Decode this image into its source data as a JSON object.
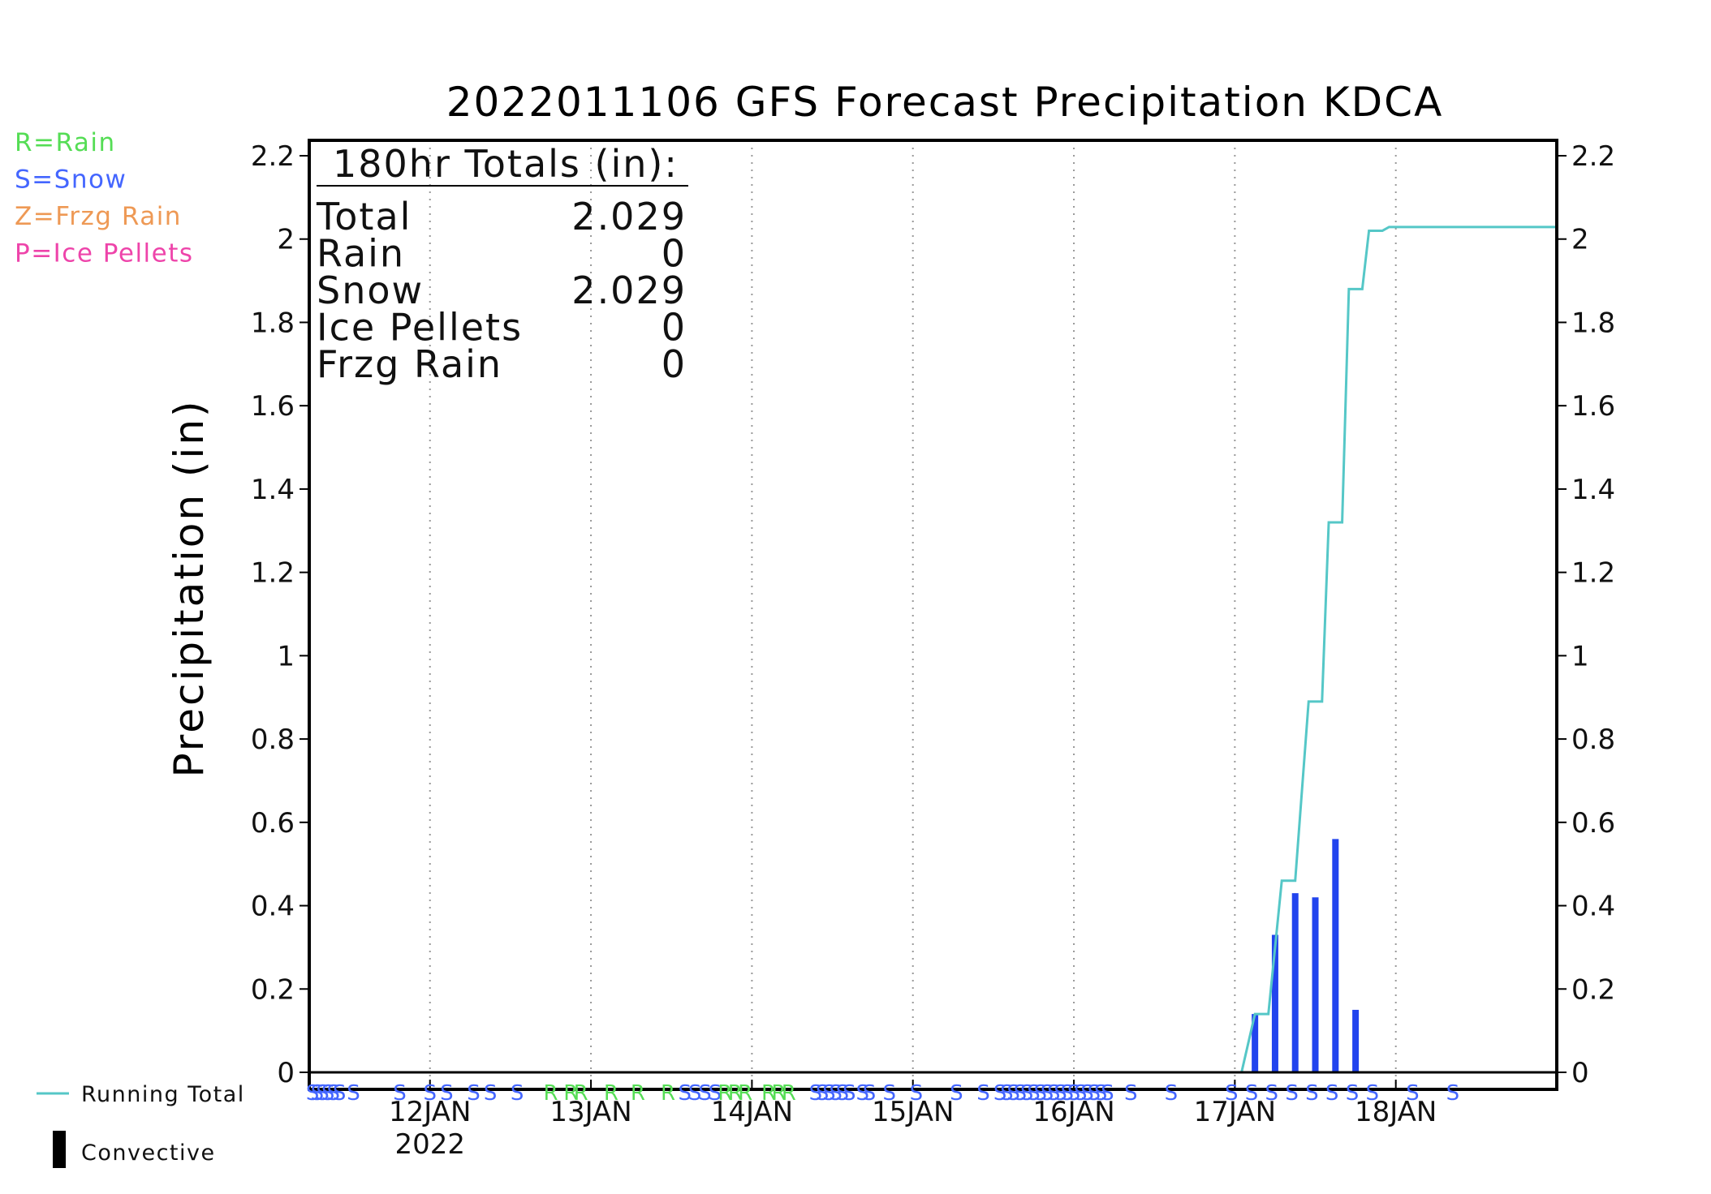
{
  "chart_data": {
    "type": "bar",
    "title": "2022011106 GFS Forecast Precipitation KDCA",
    "ylabel": "Precipitation (in)",
    "xlabel": "",
    "xlim_hours": [
      0,
      186
    ],
    "ylim": [
      0,
      2.2
    ],
    "y_ticks": [
      {
        "v": 0,
        "label": "0"
      },
      {
        "v": 0.2,
        "label": "0.2"
      },
      {
        "v": 0.4,
        "label": "0.4"
      },
      {
        "v": 0.6,
        "label": "0.6"
      },
      {
        "v": 0.8,
        "label": "0.8"
      },
      {
        "v": 1,
        "label": "1"
      },
      {
        "v": 1.2,
        "label": "1.2"
      },
      {
        "v": 1.4,
        "label": "1.4"
      },
      {
        "v": 1.6,
        "label": "1.6"
      },
      {
        "v": 1.8,
        "label": "1.8"
      },
      {
        "v": 2,
        "label": "2"
      },
      {
        "v": 2.2,
        "label": "2.2"
      }
    ],
    "x_ticks": [
      {
        "h": 18,
        "label": "12JAN",
        "sub": "2022"
      },
      {
        "h": 42,
        "label": "13JAN",
        "sub": ""
      },
      {
        "h": 66,
        "label": "14JAN",
        "sub": ""
      },
      {
        "h": 90,
        "label": "15JAN",
        "sub": ""
      },
      {
        "h": 114,
        "label": "16JAN",
        "sub": ""
      },
      {
        "h": 138,
        "label": "17JAN",
        "sub": ""
      },
      {
        "h": 162,
        "label": "18JAN",
        "sub": ""
      }
    ],
    "grid": "vertical dotted at day boundaries",
    "precip_types": [
      {
        "code": "R",
        "label": "R=Rain",
        "color": "#55dd55"
      },
      {
        "code": "S",
        "label": "S=Snow",
        "color": "#4466ff"
      },
      {
        "code": "Z",
        "label": "Z=Frzg Rain",
        "color": "#ee9955"
      },
      {
        "code": "P",
        "label": "P=Ice Pellets",
        "color": "#ee44aa"
      }
    ],
    "series": [
      {
        "name": "Running Total",
        "kind": "step-line",
        "color": "#55c7c7",
        "points": [
          [
            0,
            0
          ],
          [
            139,
            0
          ],
          [
            141,
            0.14
          ],
          [
            143,
            0.14
          ],
          [
            145,
            0.46
          ],
          [
            147,
            0.46
          ],
          [
            149,
            0.89
          ],
          [
            151,
            0.89
          ],
          [
            152,
            1.32
          ],
          [
            154,
            1.32
          ],
          [
            155,
            1.88
          ],
          [
            157,
            1.88
          ],
          [
            158,
            2.02
          ],
          [
            160,
            2.02
          ],
          [
            161,
            2.029
          ],
          [
            186,
            2.029
          ]
        ]
      },
      {
        "name": "Convective",
        "kind": "bars",
        "color": "#2244ee",
        "points": [
          [
            141,
            0.14
          ],
          [
            144,
            0.33
          ],
          [
            147,
            0.43
          ],
          [
            150,
            0.42
          ],
          [
            153,
            0.56
          ],
          [
            156,
            0.15
          ]
        ]
      }
    ],
    "ptype_markers": [
      {
        "h": 0.5,
        "c": "S"
      },
      {
        "h": 1.2,
        "c": "S"
      },
      {
        "h": 2,
        "c": "S"
      },
      {
        "h": 2.8,
        "c": "S"
      },
      {
        "h": 3.6,
        "c": "S"
      },
      {
        "h": 4.5,
        "c": "S"
      },
      {
        "h": 6.6,
        "c": "S"
      },
      {
        "h": 13.5,
        "c": "S"
      },
      {
        "h": 18,
        "c": "S"
      },
      {
        "h": 20.5,
        "c": "S"
      },
      {
        "h": 24.5,
        "c": "S"
      },
      {
        "h": 27,
        "c": "S"
      },
      {
        "h": 31,
        "c": "S"
      },
      {
        "h": 36,
        "c": "R"
      },
      {
        "h": 39,
        "c": "R"
      },
      {
        "h": 40.5,
        "c": "R"
      },
      {
        "h": 45,
        "c": "R"
      },
      {
        "h": 49,
        "c": "R"
      },
      {
        "h": 53.5,
        "c": "R"
      },
      {
        "h": 56,
        "c": "S"
      },
      {
        "h": 57.5,
        "c": "S"
      },
      {
        "h": 59,
        "c": "S"
      },
      {
        "h": 60.5,
        "c": "S"
      },
      {
        "h": 62,
        "c": "R"
      },
      {
        "h": 63.5,
        "c": "R"
      },
      {
        "h": 65,
        "c": "R"
      },
      {
        "h": 68.5,
        "c": "R"
      },
      {
        "h": 70,
        "c": "R"
      },
      {
        "h": 71.5,
        "c": "R"
      },
      {
        "h": 75.5,
        "c": "S"
      },
      {
        "h": 76.5,
        "c": "S"
      },
      {
        "h": 77.5,
        "c": "S"
      },
      {
        "h": 78.5,
        "c": "S"
      },
      {
        "h": 79.5,
        "c": "S"
      },
      {
        "h": 80.5,
        "c": "S"
      },
      {
        "h": 82.5,
        "c": "S"
      },
      {
        "h": 83.5,
        "c": "S"
      },
      {
        "h": 86.5,
        "c": "S"
      },
      {
        "h": 90.5,
        "c": "S"
      },
      {
        "h": 96.5,
        "c": "S"
      },
      {
        "h": 100.5,
        "c": "S"
      },
      {
        "h": 103,
        "c": "S"
      },
      {
        "h": 104,
        "c": "S"
      },
      {
        "h": 105,
        "c": "S"
      },
      {
        "h": 106,
        "c": "S"
      },
      {
        "h": 107,
        "c": "S"
      },
      {
        "h": 108,
        "c": "S"
      },
      {
        "h": 109,
        "c": "S"
      },
      {
        "h": 110,
        "c": "S"
      },
      {
        "h": 111,
        "c": "S"
      },
      {
        "h": 112,
        "c": "S"
      },
      {
        "h": 113,
        "c": "S"
      },
      {
        "h": 114,
        "c": "S"
      },
      {
        "h": 115,
        "c": "S"
      },
      {
        "h": 116,
        "c": "S"
      },
      {
        "h": 117,
        "c": "S"
      },
      {
        "h": 118,
        "c": "S"
      },
      {
        "h": 119,
        "c": "S"
      },
      {
        "h": 122.5,
        "c": "S"
      },
      {
        "h": 128.5,
        "c": "S"
      },
      {
        "h": 137.5,
        "c": "S"
      },
      {
        "h": 140.5,
        "c": "S"
      },
      {
        "h": 143.5,
        "c": "S"
      },
      {
        "h": 146.5,
        "c": "S"
      },
      {
        "h": 149.5,
        "c": "S"
      },
      {
        "h": 152.5,
        "c": "S"
      },
      {
        "h": 155.5,
        "c": "S"
      },
      {
        "h": 158.5,
        "c": "S"
      },
      {
        "h": 164.5,
        "c": "S"
      },
      {
        "h": 170.5,
        "c": "S"
      }
    ],
    "totals_box": {
      "heading": "180hr Totals (in):",
      "rows": [
        {
          "label": "Total",
          "value": "2.029"
        },
        {
          "label": "Rain",
          "value": "0"
        },
        {
          "label": "Snow",
          "value": "2.029"
        },
        {
          "label": "Ice Pellets",
          "value": "0"
        },
        {
          "label": "Frzg Rain",
          "value": "0"
        }
      ]
    },
    "key": {
      "line_label": "Running Total",
      "bar_label": "Convective"
    }
  }
}
